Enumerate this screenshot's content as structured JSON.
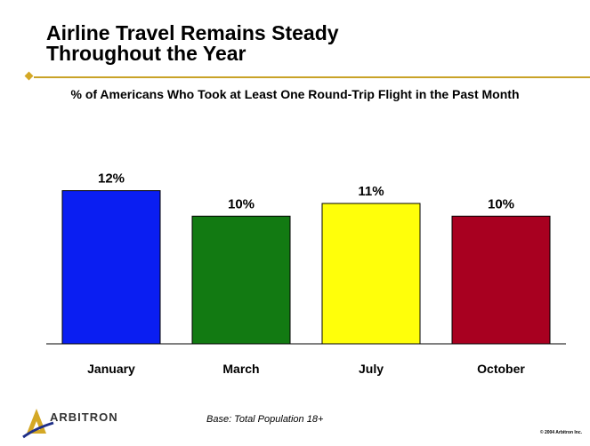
{
  "title": {
    "line1": "Airline Travel Remains Steady",
    "line2": "Throughout the Year"
  },
  "subtitle": "% of Americans Who Took at Least One Round-Trip Flight in the Past Month",
  "footer": {
    "logo_text": "ARBITRON",
    "base_note": "Base: Total Population 18+",
    "copyright": "© 2004 Arbitron Inc."
  },
  "colors": {
    "accent_rule": "#c9a227",
    "bars": [
      "#0a1ef2",
      "#127a12",
      "#ffff0a",
      "#a80020"
    ]
  },
  "chart_data": {
    "type": "bar",
    "title": "% of Americans Who Took at Least One Round-Trip Flight in the Past Month",
    "categories": [
      "January",
      "March",
      "July",
      "October"
    ],
    "values": [
      12,
      10,
      11,
      10
    ],
    "value_labels": [
      "12%",
      "10%",
      "11%",
      "10%"
    ],
    "ylim": [
      0,
      17.4
    ],
    "grid": false,
    "legend": "none"
  }
}
